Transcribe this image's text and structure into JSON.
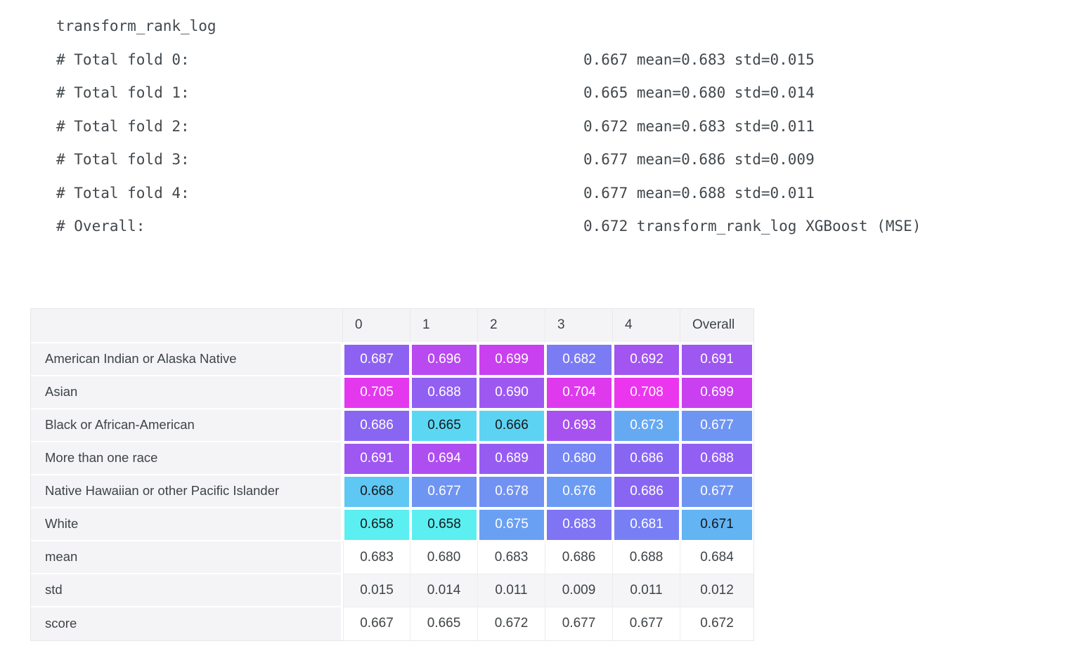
{
  "log": {
    "title": "transform_rank_log",
    "lines": [
      {
        "label": "# Total fold 0:",
        "value": "0.667 mean=0.683 std=0.015"
      },
      {
        "label": "# Total fold 1:",
        "value": "0.665 mean=0.680 std=0.014"
      },
      {
        "label": "# Total fold 2:",
        "value": "0.672 mean=0.683 std=0.011"
      },
      {
        "label": "# Total fold 3:",
        "value": "0.677 mean=0.686 std=0.009"
      },
      {
        "label": "# Total fold 4:",
        "value": "0.677 mean=0.688 std=0.011"
      },
      {
        "label": "# Overall:",
        "value": "0.672 transform_rank_log XGBoost (MSE)"
      }
    ]
  },
  "table": {
    "columns": [
      "",
      "0",
      "1",
      "2",
      "3",
      "4",
      "Overall"
    ],
    "heat_rows": [
      {
        "label": "American Indian or Alaska Native",
        "values": [
          "0.687",
          "0.696",
          "0.699",
          "0.682",
          "0.692",
          "0.691"
        ],
        "colors": [
          "#8D62F2",
          "#B949F0",
          "#C840EF",
          "#7B7BF4",
          "#A255F1",
          "#9E57F1"
        ]
      },
      {
        "label": "Asian",
        "values": [
          "0.705",
          "0.688",
          "0.690",
          "0.704",
          "0.708",
          "0.699"
        ],
        "colors": [
          "#E338EE",
          "#915FF2",
          "#9D58F1",
          "#DF39EE",
          "#EC35EE",
          "#C840EF"
        ]
      },
      {
        "label": "Black or African-American",
        "values": [
          "0.686",
          "0.665",
          "0.666",
          "0.693",
          "0.673",
          "0.677"
        ],
        "colors": [
          "#8966F2",
          "#5CD7F3",
          "#5DD3F3",
          "#A851F1",
          "#66A9F3",
          "#6F95F3"
        ]
      },
      {
        "label": "More than one race",
        "values": [
          "0.691",
          "0.694",
          "0.689",
          "0.680",
          "0.686",
          "0.688"
        ],
        "colors": [
          "#9E57F1",
          "#AE4EF1",
          "#965CF2",
          "#7685F4",
          "#8966F2",
          "#915FF2"
        ]
      },
      {
        "label": "Native Hawaiian or other Pacific Islander",
        "values": [
          "0.668",
          "0.677",
          "0.678",
          "0.676",
          "0.686",
          "0.677"
        ],
        "colors": [
          "#5FC7F3",
          "#6F95F3",
          "#7191F3",
          "#6C9BF3",
          "#8966F2",
          "#6F95F3"
        ]
      },
      {
        "label": "White",
        "values": [
          "0.658",
          "0.658",
          "0.675",
          "0.683",
          "0.681",
          "0.671"
        ],
        "colors": [
          "#5BEFF1",
          "#5BEFF1",
          "#6AA0F3",
          "#7E74F4",
          "#787FF4",
          "#62B4F3"
        ]
      }
    ],
    "summary_rows": [
      {
        "label": "mean",
        "values": [
          "0.683",
          "0.680",
          "0.683",
          "0.686",
          "0.688",
          "0.684"
        ],
        "bg": "#ffffff"
      },
      {
        "label": "std",
        "values": [
          "0.015",
          "0.014",
          "0.011",
          "0.009",
          "0.011",
          "0.012"
        ],
        "bg": "#f5f5f7"
      },
      {
        "label": "score",
        "values": [
          "0.667",
          "0.665",
          "0.672",
          "0.677",
          "0.677",
          "0.672"
        ],
        "bg": "#ffffff"
      }
    ],
    "dark_text_threshold": 0.672,
    "colors": {
      "header_bg": "#f4f4f6",
      "label_bg": "#f4f4f6",
      "border": "#e9e9ec",
      "heat_text_light": "#ffffff",
      "heat_text_dark": "#15171a",
      "text": "#3e4347"
    }
  },
  "chart_data": {
    "type": "heatmap",
    "columns": [
      "0",
      "1",
      "2",
      "3",
      "4",
      "Overall"
    ],
    "rows": [
      "American Indian or Alaska Native",
      "Asian",
      "Black or African-American",
      "More than one race",
      "Native Hawaiian or other Pacific Islander",
      "White"
    ],
    "values": [
      [
        0.687,
        0.696,
        0.699,
        0.682,
        0.692,
        0.691
      ],
      [
        0.705,
        0.688,
        0.69,
        0.704,
        0.708,
        0.699
      ],
      [
        0.686,
        0.665,
        0.666,
        0.693,
        0.673,
        0.677
      ],
      [
        0.691,
        0.694,
        0.689,
        0.68,
        0.686,
        0.688
      ],
      [
        0.668,
        0.677,
        0.678,
        0.676,
        0.686,
        0.677
      ],
      [
        0.658,
        0.658,
        0.675,
        0.683,
        0.681,
        0.671
      ]
    ],
    "summary": {
      "mean": [
        0.683,
        0.68,
        0.683,
        0.686,
        0.688,
        0.684
      ],
      "std": [
        0.015,
        0.014,
        0.011,
        0.009,
        0.011,
        0.012
      ],
      "score": [
        0.667,
        0.665,
        0.672,
        0.677,
        0.677,
        0.672
      ]
    },
    "color_scale": {
      "min": 0.658,
      "max": 0.708,
      "low": "#5BEFF1",
      "high": "#EC35EE"
    }
  }
}
